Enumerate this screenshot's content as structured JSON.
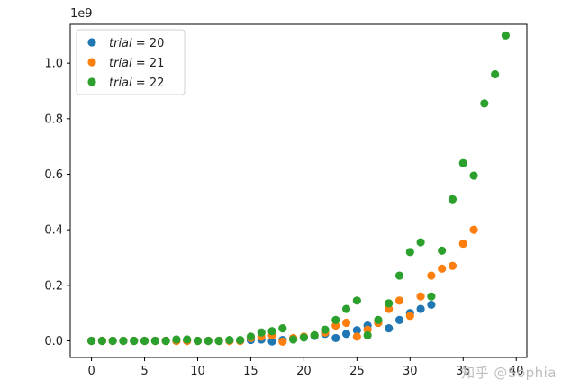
{
  "watermark": "知乎 @Sophia",
  "chart_data": {
    "type": "scatter",
    "title": "",
    "xlabel": "",
    "ylabel": "",
    "y_offset_label": "1e9",
    "xlim": [
      -2,
      41
    ],
    "ylim": [
      -0.06,
      1.14
    ],
    "x_ticks": [
      0,
      5,
      10,
      15,
      20,
      25,
      30,
      35,
      40
    ],
    "x_tick_labels": [
      "0",
      "5",
      "10",
      "15",
      "20",
      "25",
      "30",
      "35",
      "40"
    ],
    "y_ticks": [
      0.0,
      0.2,
      0.4,
      0.6,
      0.8,
      1.0
    ],
    "y_tick_labels": [
      "0.0",
      "0.2",
      "0.4",
      "0.6",
      "0.8",
      "1.0"
    ],
    "grid": false,
    "legend_position": "top-left",
    "series": [
      {
        "name": "trial = 20",
        "legend_var": "trial",
        "legend_value": "20",
        "color": "#1f77b4",
        "x": [
          0,
          1,
          2,
          3,
          4,
          5,
          6,
          7,
          8,
          9,
          10,
          11,
          12,
          13,
          14,
          15,
          16,
          17,
          18,
          19,
          20,
          21,
          22,
          23,
          24,
          25,
          26,
          27,
          28,
          29,
          30,
          31,
          32
        ],
        "y": [
          0,
          0,
          0,
          0,
          0,
          0,
          0,
          0,
          0,
          0,
          0,
          0,
          0,
          0,
          0,
          0.003,
          0.005,
          -0.002,
          0.003,
          0.008,
          0.012,
          0.018,
          0.025,
          0.01,
          0.025,
          0.038,
          0.055,
          0.065,
          0.045,
          0.075,
          0.1,
          0.115,
          0.13
        ]
      },
      {
        "name": "trial = 21",
        "legend_var": "trial",
        "legend_value": "21",
        "color": "#ff7f0e",
        "x": [
          0,
          1,
          2,
          3,
          4,
          5,
          6,
          7,
          8,
          9,
          10,
          11,
          12,
          13,
          14,
          15,
          16,
          17,
          18,
          19,
          20,
          21,
          22,
          23,
          24,
          25,
          26,
          27,
          28,
          29,
          30,
          31,
          32,
          33,
          34,
          35,
          36
        ],
        "y": [
          0,
          0,
          0,
          0,
          0,
          0,
          0,
          0,
          0,
          0,
          0,
          0,
          0,
          0,
          0,
          0.01,
          0.015,
          0.02,
          -0.003,
          0.01,
          0.015,
          0.02,
          0.03,
          0.055,
          0.065,
          0.015,
          0.04,
          0.065,
          0.115,
          0.145,
          0.09,
          0.16,
          0.235,
          0.26,
          0.27,
          0.35,
          0.4
        ]
      },
      {
        "name": "trial = 22",
        "legend_var": "trial",
        "legend_value": "22",
        "color": "#2ca02c",
        "x": [
          0,
          1,
          2,
          3,
          4,
          5,
          6,
          7,
          8,
          9,
          10,
          11,
          12,
          13,
          14,
          15,
          16,
          17,
          18,
          19,
          20,
          21,
          22,
          23,
          24,
          25,
          26,
          27,
          28,
          29,
          30,
          31,
          32,
          33,
          34,
          35,
          36,
          37,
          38,
          39
        ],
        "y": [
          0,
          0,
          0,
          0,
          0,
          0,
          0,
          0,
          0.005,
          0.005,
          0,
          0,
          0,
          0.003,
          0.003,
          0.015,
          0.03,
          0.035,
          0.045,
          0.005,
          0.012,
          0.02,
          0.04,
          0.075,
          0.115,
          0.145,
          0.02,
          0.075,
          0.135,
          0.235,
          0.32,
          0.355,
          0.16,
          0.325,
          0.51,
          0.64,
          0.595,
          0.855,
          0.96,
          1.1
        ]
      }
    ]
  }
}
